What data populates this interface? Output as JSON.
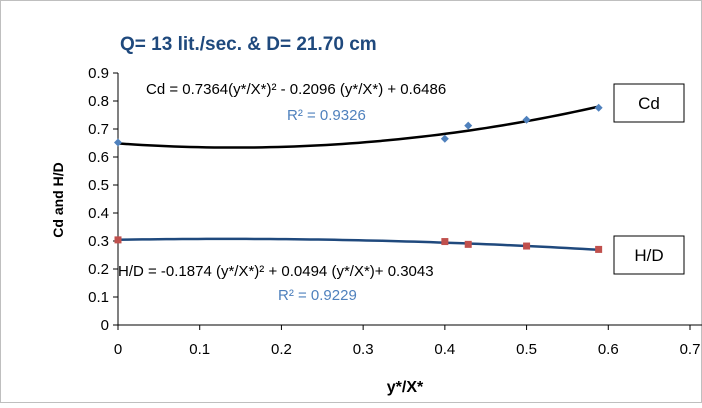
{
  "chart_data": {
    "type": "scatter",
    "title": "Q= 13 lit./sec. & D= 21.70 cm",
    "xlabel": "y*/X*",
    "ylabel": "Cd and H/D",
    "xlim": [
      0,
      0.7
    ],
    "ylim": [
      0,
      0.9
    ],
    "x_ticks": [
      "0",
      "0.1",
      "0.2",
      "0.3",
      "0.4",
      "0.5",
      "0.6",
      "0.7"
    ],
    "y_ticks": [
      "0",
      "0.1",
      "0.2",
      "0.3",
      "0.4",
      "0.5",
      "0.6",
      "0.7",
      "0.8",
      "0.9"
    ],
    "grid": false,
    "legend": "right",
    "series": [
      {
        "name": "Cd",
        "color": "#4F81BD",
        "marker": "diamond",
        "trend_color": "#000000",
        "x": [
          0,
          0.4,
          0.4286,
          0.5,
          0.5882
        ],
        "y": [
          0.652,
          0.665,
          0.712,
          0.733,
          0.776
        ],
        "trendline": {
          "type": "poly2",
          "a": 0.7364,
          "b": -0.2096,
          "c": 0.6486,
          "equation": "Cd = 0.7364(y*/X*)² - 0.2096 (y*/X*) + 0.6486",
          "r2": "R² = 0.9326"
        }
      },
      {
        "name": "H/D",
        "color": "#C0504D",
        "marker": "square",
        "trend_color": "#1F497D",
        "x": [
          0,
          0.4,
          0.4286,
          0.5,
          0.5882
        ],
        "y": [
          0.304,
          0.298,
          0.288,
          0.282,
          0.27
        ],
        "trendline": {
          "type": "poly2",
          "a": -0.1874,
          "b": 0.0494,
          "c": 0.3043,
          "equation": "H/D = -0.1874 (y*/X*)² + 0.0494 (y*/X*)+ 0.3043",
          "r2": "R² = 0.9229"
        }
      }
    ]
  }
}
